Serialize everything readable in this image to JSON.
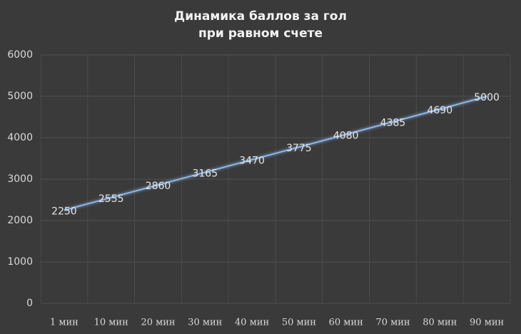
{
  "chart_data": {
    "type": "line",
    "title": [
      "Динамика баллов за гол",
      "при равном счете"
    ],
    "categories": [
      "1 мин",
      "10 мин",
      "20 мин",
      "30 мин",
      "40 мин",
      "50 мин",
      "60 мин",
      "70 мин",
      "80 мин",
      "90 мин"
    ],
    "values": [
      2250,
      2555,
      2860,
      3165,
      3470,
      3775,
      4080,
      4385,
      4690,
      5000
    ],
    "color": "#8db6e8",
    "ylim": [
      0,
      6000
    ],
    "yticks": [
      0,
      1000,
      2000,
      3000,
      4000,
      5000,
      6000
    ],
    "grid": true
  }
}
